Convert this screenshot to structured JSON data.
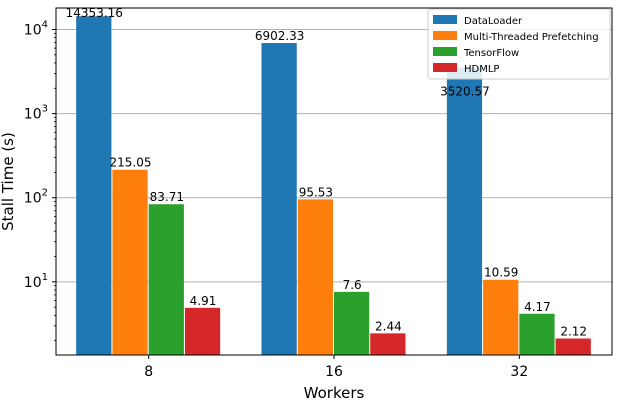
{
  "chart_data": {
    "type": "bar",
    "xlabel": "Workers",
    "ylabel": "Stall Time (s)",
    "yscale": "log",
    "ylim": [
      1.35,
      18000
    ],
    "grid": "horizontal",
    "legend_position": "top-right",
    "categories": [
      "8",
      "16",
      "32"
    ],
    "series": [
      {
        "name": "DataLoader",
        "color": "#1f77b4",
        "values": [
          14353.16,
          6902.33,
          3520.57
        ],
        "labels": [
          "14353.16",
          "6902.33",
          "3520.57"
        ]
      },
      {
        "name": "Multi-Threaded Prefetching",
        "color": "#ff7f0e",
        "values": [
          215.05,
          95.53,
          10.59
        ],
        "labels": [
          "215.05",
          "95.53",
          "10.59"
        ]
      },
      {
        "name": "TensorFlow",
        "color": "#2ca02c",
        "values": [
          83.71,
          7.6,
          4.17
        ],
        "labels": [
          "83.71",
          "7.6",
          "4.17"
        ]
      },
      {
        "name": "HDMLP",
        "color": "#d62728",
        "values": [
          4.91,
          2.44,
          2.12
        ],
        "labels": [
          "4.91",
          "2.44",
          "2.12"
        ]
      }
    ],
    "yticks": [
      {
        "value": 10,
        "base": "10",
        "exp": "1"
      },
      {
        "value": 100,
        "base": "10",
        "exp": "2"
      },
      {
        "value": 1000,
        "base": "10",
        "exp": "3"
      },
      {
        "value": 10000,
        "base": "10",
        "exp": "4"
      }
    ]
  }
}
